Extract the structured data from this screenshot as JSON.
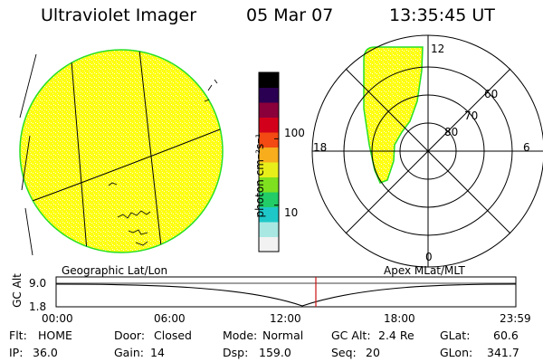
{
  "header": {
    "instrument": "Ultraviolet Imager",
    "date": "05 Mar 07",
    "time": "13:35:45 UT"
  },
  "colorbar": {
    "label": "photon cm⁻²s⁻¹",
    "tick_labels": [
      "100",
      "10"
    ],
    "tick_values": [
      100,
      10
    ],
    "range": [
      2,
      1000
    ],
    "scale": "log",
    "colors": [
      "#f2f2f2",
      "#a9e8e2",
      "#1fc8c8",
      "#22cc66",
      "#7ee01f",
      "#e8ee1a",
      "#f7ad1c",
      "#f24a12",
      "#d2001a",
      "#8a003a",
      "#2a0052",
      "#000000"
    ]
  },
  "geo_panel": {
    "caption": "Geographic Lat/Lon",
    "fill_color": "#ffff10",
    "edge_color": "#26e026"
  },
  "polar_panel": {
    "caption": "Apex MLat/MLT",
    "mlt_labels": {
      "top": "12",
      "right": "6",
      "bottom": "0",
      "left": "18"
    },
    "mlat_labels": [
      "60",
      "70",
      "80"
    ],
    "mlat_values": [
      60,
      70,
      80
    ]
  },
  "altitude_plot": {
    "ylabel": "GC Alt",
    "y_tick_labels": [
      "9.0",
      "1.8"
    ],
    "x_tick_labels": [
      "00:00",
      "06:00",
      "12:00",
      "18:00",
      "23:59"
    ],
    "current_time_marker": "13:35:45",
    "marker_color": "#cc1010"
  },
  "info": {
    "flt": {
      "label": "Flt:",
      "value": "HOME"
    },
    "ip": {
      "label": "IP:",
      "value": "36.0"
    },
    "door": {
      "label": "Door:",
      "value": "Closed"
    },
    "gain": {
      "label": "Gain:",
      "value": "14"
    },
    "mode": {
      "label": "Mode:",
      "value": "Normal"
    },
    "dsp": {
      "label": "Dsp:",
      "value": "159.0"
    },
    "gcalt": {
      "label": "GC Alt:",
      "value": "2.4 Re"
    },
    "seq": {
      "label": "Seq:",
      "value": "20"
    },
    "glat": {
      "label": "GLat:",
      "value": "60.6"
    },
    "glon": {
      "label": "GLon:",
      "value": "341.7"
    }
  }
}
